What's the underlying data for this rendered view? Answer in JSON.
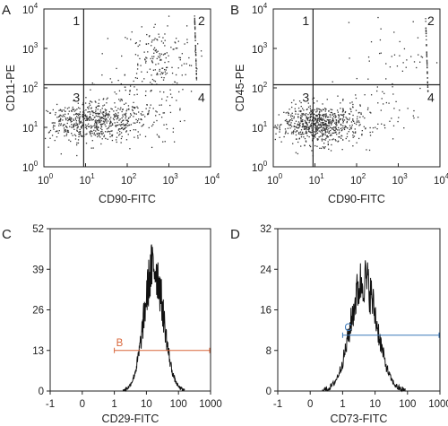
{
  "panel_letters": [
    "A",
    "B",
    "C",
    "D"
  ],
  "chart_data": [
    {
      "panel": "A",
      "type": "scatter",
      "xlabel": "CD90-FITC",
      "ylabel": "CD11-PE",
      "x_scale": "log",
      "y_scale": "log",
      "xlim": [
        1,
        10000
      ],
      "ylim": [
        1,
        10000
      ],
      "x_ticks": [
        {
          "base": "10",
          "exp": "0"
        },
        {
          "base": "10",
          "exp": "1"
        },
        {
          "base": "10",
          "exp": "2"
        },
        {
          "base": "10",
          "exp": "3"
        },
        {
          "base": "10",
          "exp": "4"
        }
      ],
      "y_ticks": [
        {
          "base": "10",
          "exp": "0"
        },
        {
          "base": "10",
          "exp": "1"
        },
        {
          "base": "10",
          "exp": "2"
        },
        {
          "base": "10",
          "exp": "3"
        },
        {
          "base": "10",
          "exp": "4"
        }
      ],
      "quadrant_gate": {
        "x": 9,
        "y": 120
      },
      "quadrant_labels": [
        "1",
        "2",
        "3",
        "4"
      ],
      "clusters": [
        {
          "center": [
            22,
            14
          ],
          "spread_decades": [
            0.55,
            0.25
          ],
          "count": 480
        },
        {
          "center": [
            4,
            14
          ],
          "spread_decades": [
            0.35,
            0.2
          ],
          "count": 120
        },
        {
          "center": [
            500,
            600
          ],
          "spread_decades": [
            0.45,
            0.45
          ],
          "count": 170
        },
        {
          "center": [
            200,
            30
          ],
          "spread_decades": [
            0.55,
            0.45
          ],
          "count": 110
        }
      ],
      "saturation_edge": {
        "x": 4500,
        "y_range": [
          150,
          7000
        ],
        "count": 60
      }
    },
    {
      "panel": "B",
      "type": "scatter",
      "xlabel": "CD90-FITC",
      "ylabel": "CD45-PE",
      "x_scale": "log",
      "y_scale": "log",
      "xlim": [
        1,
        10000
      ],
      "ylim": [
        1,
        10000
      ],
      "x_ticks": [
        {
          "base": "10",
          "exp": "0"
        },
        {
          "base": "10",
          "exp": "1"
        },
        {
          "base": "10",
          "exp": "2"
        },
        {
          "base": "10",
          "exp": "3"
        },
        {
          "base": "10",
          "exp": "4"
        }
      ],
      "y_ticks": [
        {
          "base": "10",
          "exp": "0"
        },
        {
          "base": "10",
          "exp": "1"
        },
        {
          "base": "10",
          "exp": "2"
        },
        {
          "base": "10",
          "exp": "3"
        },
        {
          "base": "10",
          "exp": "4"
        }
      ],
      "quadrant_gate": {
        "x": 9,
        "y": 120
      },
      "quadrant_labels": [
        "1",
        "2",
        "3",
        "4"
      ],
      "clusters": [
        {
          "center": [
            14,
            12
          ],
          "spread_decades": [
            0.45,
            0.25
          ],
          "count": 620
        },
        {
          "center": [
            3,
            12
          ],
          "spread_decades": [
            0.3,
            0.2
          ],
          "count": 90
        },
        {
          "center": [
            800,
            700
          ],
          "spread_decades": [
            0.45,
            0.45
          ],
          "count": 40
        },
        {
          "center": [
            300,
            25
          ],
          "spread_decades": [
            0.5,
            0.4
          ],
          "count": 60
        }
      ],
      "saturation_edge": {
        "x": 5000,
        "y_range": [
          80,
          6000
        ],
        "count": 50
      }
    },
    {
      "panel": "C",
      "type": "histogram",
      "xlabel": "CD29-FITC",
      "ylabel": "",
      "x_scale": "log",
      "x_ticks": [
        "-1",
        "0",
        "1",
        "10",
        "100",
        "1000"
      ],
      "y_ticks": [
        "0",
        "13",
        "26",
        "39",
        "52"
      ],
      "ylim": [
        0,
        52
      ],
      "distribution": {
        "peak_x": 17,
        "peak_count": 40,
        "width_decades": 0.3
      },
      "gate": {
        "label": "B",
        "x_start": 1,
        "x_end": 1000,
        "y": 13,
        "color": "#d9663a"
      }
    },
    {
      "panel": "D",
      "type": "histogram",
      "xlabel": "CD73-FITC",
      "ylabel": "",
      "x_scale": "log",
      "x_ticks": [
        "-1",
        "0",
        "1",
        "10",
        "100",
        "1000"
      ],
      "y_ticks": [
        "0",
        "8",
        "16",
        "24",
        "32"
      ],
      "ylim": [
        0,
        32
      ],
      "distribution": {
        "peak_x": 4.5,
        "peak_count": 22,
        "width_decades": 0.4
      },
      "gate": {
        "label": "C",
        "x_start": 1,
        "x_end": 1000,
        "y": 11,
        "color": "#3a78b9"
      }
    }
  ]
}
